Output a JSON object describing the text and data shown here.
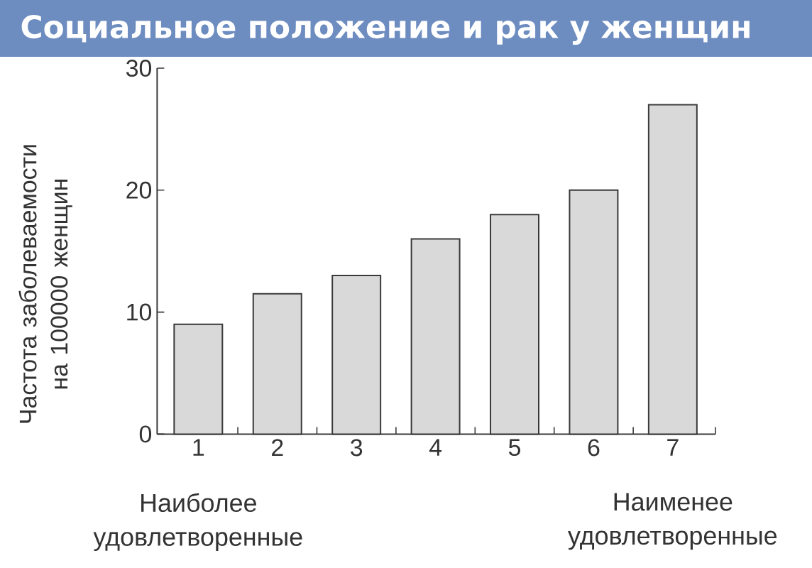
{
  "chart_data": {
    "type": "bar",
    "title": "Социальное положение и рак у женщин",
    "ylabel": "Частота заболеваемости на 100000 женщин",
    "categories": [
      "1",
      "2",
      "3",
      "4",
      "5",
      "6",
      "7"
    ],
    "values": [
      9,
      11.5,
      13,
      16,
      18,
      20,
      27
    ],
    "color": "#d9d9d9",
    "ylim": [
      0,
      30
    ],
    "yticks": [
      0,
      10,
      20,
      30
    ],
    "annotations": [
      "Наиболее удовлетворенные",
      "Наименее удовлетворенные"
    ]
  }
}
